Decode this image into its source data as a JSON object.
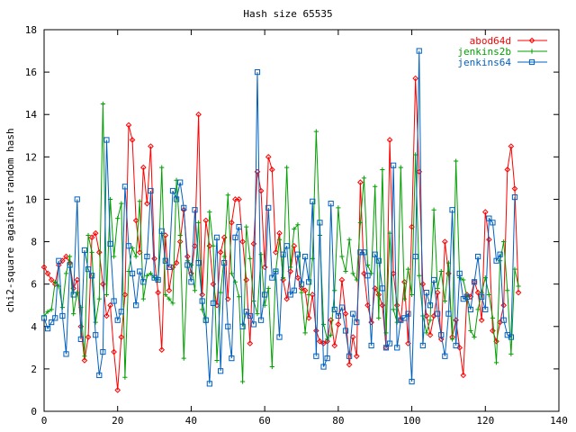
{
  "chart_data": {
    "type": "line",
    "title": "Hash size 65535",
    "xlabel": "",
    "ylabel": "chi2-square against random hash",
    "xlim": [
      0,
      140
    ],
    "ylim": [
      0,
      18
    ],
    "x_ticks": [
      0,
      20,
      40,
      60,
      80,
      100,
      120,
      140
    ],
    "y_ticks": [
      0,
      2,
      4,
      6,
      8,
      10,
      12,
      14,
      16,
      18
    ],
    "grid": false,
    "legend_position": "top-right",
    "series": [
      {
        "name": "abod64d",
        "color": "#ff0000",
        "marker": "diamond",
        "x_start": 0,
        "x_step": 1,
        "values": [
          6.8,
          6.5,
          6.2,
          6.0,
          6.9,
          7.1,
          7.3,
          7.0,
          5.8,
          6.2,
          4.0,
          2.4,
          3.5,
          8.2,
          8.4,
          7.5,
          6.0,
          4.5,
          5.0,
          2.8,
          1.0,
          3.5,
          5.5,
          13.5,
          12.8,
          9.0,
          7.5,
          11.5,
          9.8,
          12.5,
          7.2,
          5.6,
          2.9,
          8.3,
          5.7,
          6.8,
          7.0,
          8.0,
          9.5,
          7.3,
          6.5,
          7.8,
          14.0,
          5.5,
          9.0,
          7.8,
          6.0,
          5.0,
          7.5,
          8.2,
          5.3,
          8.9,
          10.0,
          10.0,
          8.0,
          6.2,
          3.2,
          7.9,
          11.3,
          10.4,
          6.8,
          12.0,
          11.4,
          7.5,
          8.4,
          6.2,
          5.3,
          6.6,
          7.8,
          6.3,
          5.8,
          5.7,
          4.4,
          5.5,
          3.8,
          3.3,
          3.2,
          3.3,
          4.3,
          3.1,
          4.1,
          6.2,
          4.6,
          2.2,
          3.5,
          2.6,
          10.8,
          6.5,
          5.0,
          4.2,
          5.8,
          5.5,
          5.0,
          3.0,
          12.8,
          6.5,
          5.0,
          4.3,
          6.1,
          3.2,
          8.7,
          15.7,
          11.3,
          6.0,
          4.5,
          3.6,
          4.5,
          5.6,
          3.4,
          8.0,
          6.5,
          3.5,
          4.3,
          3.0,
          1.7,
          5.5,
          5.4,
          6.1,
          5.6,
          4.3,
          9.4,
          8.1,
          3.8,
          3.3,
          4.2,
          5.0,
          11.4,
          12.5,
          10.5,
          5.6
        ]
      },
      {
        "name": "jenkins2b",
        "color": "#00a000",
        "marker": "plus",
        "x_start": 0,
        "x_step": 1,
        "values": [
          4.5,
          4.7,
          4.8,
          6.1,
          5.9,
          4.9,
          6.5,
          7.3,
          4.6,
          5.6,
          4.9,
          2.6,
          8.3,
          7.5,
          4.2,
          5.3,
          14.5,
          5.5,
          10.0,
          7.3,
          9.1,
          9.8,
          1.6,
          6.6,
          7.7,
          7.3,
          9.9,
          5.3,
          6.4,
          6.5,
          6.3,
          6.2,
          11.5,
          5.5,
          5.3,
          5.1,
          10.9,
          8.3,
          2.5,
          7.1,
          6.9,
          5.7,
          8.9,
          4.8,
          4.2,
          9.4,
          7.8,
          2.4,
          5.6,
          7.3,
          10.2,
          6.5,
          6.1,
          5.4,
          1.4,
          8.7,
          7.2,
          5.2,
          4.6,
          7.4,
          5.0,
          5.8,
          2.1,
          6.6,
          8.1,
          6.3,
          11.5,
          6.8,
          8.6,
          8.8,
          5.6,
          3.7,
          5.5,
          7.2,
          13.2,
          8.3,
          4.1,
          3.4,
          3.6,
          5.7,
          9.6,
          7.3,
          6.6,
          8.1,
          6.5,
          6.2,
          8.9,
          11.0,
          6.9,
          6.5,
          10.6,
          4.4,
          11.4,
          3.7,
          8.4,
          4.8,
          4.2,
          11.5,
          5.3,
          6.7,
          5.5,
          12.1,
          6.4,
          4.5,
          3.7,
          4.3,
          9.5,
          5.8,
          6.6,
          5.2,
          7.0,
          3.4,
          11.8,
          6.3,
          6.2,
          5.4,
          3.8,
          3.5,
          4.8,
          5.6,
          6.3,
          5.5,
          4.4,
          2.3,
          7.1,
          8.0,
          5.7,
          2.7,
          6.7,
          5.9
        ]
      },
      {
        "name": "jenkins64",
        "color": "#0060c0",
        "marker": "square",
        "x_start": 0,
        "x_step": 1,
        "values": [
          4.4,
          3.9,
          4.2,
          4.4,
          7.1,
          4.5,
          2.7,
          6.9,
          5.5,
          10.0,
          3.4,
          7.6,
          6.7,
          6.4,
          3.6,
          1.7,
          2.8,
          12.8,
          7.9,
          5.2,
          4.3,
          4.7,
          10.6,
          7.8,
          6.5,
          5.0,
          6.6,
          6.1,
          7.3,
          10.4,
          6.3,
          6.2,
          8.5,
          7.1,
          6.8,
          10.4,
          10.0,
          10.8,
          9.6,
          6.9,
          6.1,
          9.5,
          7.0,
          5.2,
          4.3,
          1.3,
          5.1,
          8.2,
          1.9,
          7.0,
          4.0,
          2.5,
          8.2,
          8.7,
          4.0,
          4.7,
          4.5,
          4.1,
          16.0,
          4.3,
          5.5,
          9.6,
          6.3,
          6.6,
          3.5,
          7.4,
          7.8,
          5.5,
          5.7,
          7.4,
          6.0,
          7.3,
          6.1,
          9.9,
          2.6,
          8.9,
          2.1,
          2.5,
          9.8,
          4.8,
          4.5,
          4.9,
          3.8,
          2.6,
          4.6,
          4.2,
          7.5,
          7.5,
          6.4,
          3.1,
          7.4,
          7.1,
          5.8,
          3.0,
          3.2,
          11.6,
          3.0,
          4.3,
          4.4,
          4.6,
          1.4,
          7.3,
          17.0,
          3.1,
          5.6,
          5.0,
          6.2,
          4.6,
          3.6,
          2.6,
          4.6,
          9.5,
          3.1,
          6.5,
          5.3,
          5.4,
          4.8,
          6.1,
          7.3,
          5.4,
          4.8,
          9.1,
          8.9,
          7.1,
          7.4,
          4.3,
          3.6,
          3.5,
          10.1
        ]
      }
    ]
  }
}
